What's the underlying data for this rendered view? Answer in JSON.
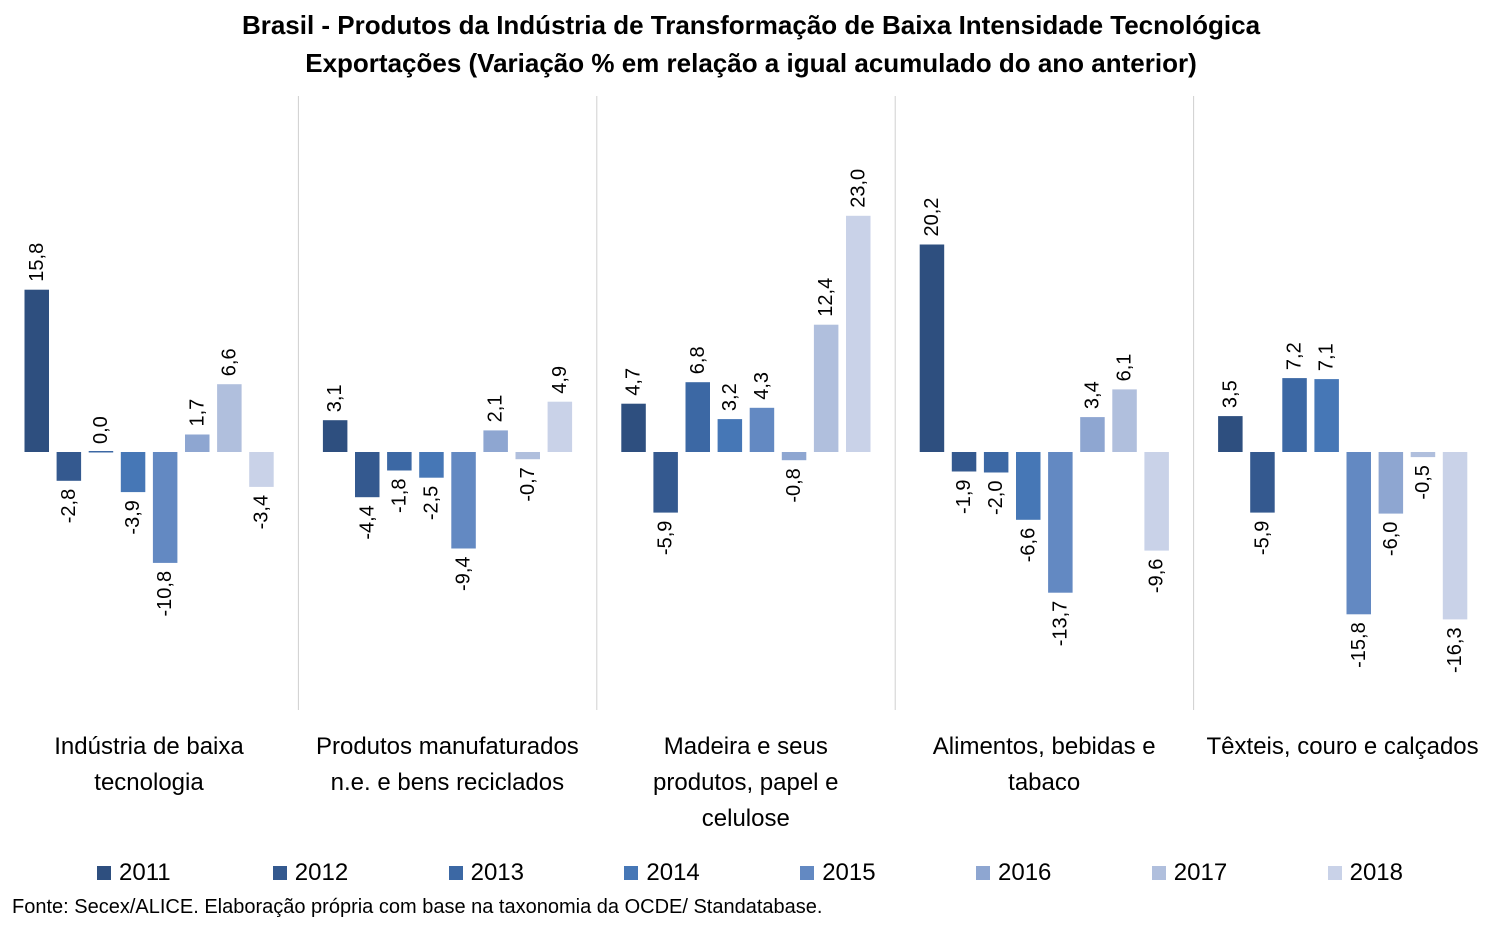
{
  "chart_data": {
    "type": "bar",
    "title": "Brasil - Produtos da Indústria de Transformação de Baixa Intensidade Tecnológica",
    "subtitle": "Exportações (Variação % em relação a igual acumulado do ano anterior)",
    "categories": [
      [
        "Indústria de baixa",
        "tecnologia"
      ],
      [
        "Produtos manufaturados",
        "n.e. e bens reciclados"
      ],
      [
        "Madeira e seus",
        "produtos, papel e",
        "celulose"
      ],
      [
        "Alimentos, bebidas e",
        "tabaco"
      ],
      [
        "Têxteis, couro e calçados"
      ]
    ],
    "series": [
      {
        "name": "2011",
        "color": "#2E4F7F",
        "values": [
          15.8,
          3.1,
          4.7,
          20.2,
          3.5
        ],
        "labels": [
          "15,8",
          "3,1",
          "4,7",
          "20,2",
          "3,5"
        ]
      },
      {
        "name": "2012",
        "color": "#34598F",
        "values": [
          -2.8,
          -4.4,
          -5.9,
          -1.9,
          -5.9
        ],
        "labels": [
          "-2,8",
          "-4,4",
          "-5,9",
          "-1,9",
          "-5,9"
        ]
      },
      {
        "name": "2013",
        "color": "#3C68A4",
        "values": [
          0.0,
          -1.8,
          6.8,
          -2.0,
          7.2
        ],
        "labels": [
          "0,0",
          "-1,8",
          "6,8",
          "-2,0",
          "7,2"
        ]
      },
      {
        "name": "2014",
        "color": "#4677B6",
        "values": [
          -3.9,
          -2.5,
          3.2,
          -6.6,
          7.1
        ],
        "labels": [
          "-3,9",
          "-2,5",
          "3,2",
          "-6,6",
          "7,1"
        ]
      },
      {
        "name": "2015",
        "color": "#6389C2",
        "values": [
          -10.8,
          -9.4,
          4.3,
          -13.7,
          -15.8
        ],
        "labels": [
          "-10,8",
          "-9,4",
          "4,3",
          "-13,7",
          "-15,8"
        ]
      },
      {
        "name": "2016",
        "color": "#8EA6D1",
        "values": [
          1.7,
          2.1,
          -0.8,
          3.4,
          -6.0
        ],
        "labels": [
          "1,7",
          "2,1",
          "-0,8",
          "3,4",
          "-6,0"
        ]
      },
      {
        "name": "2017",
        "color": "#B0BFDD",
        "values": [
          6.6,
          -0.7,
          12.4,
          6.1,
          -0.5
        ],
        "labels": [
          "6,6",
          "-0,7",
          "12,4",
          "6,1",
          "-0,5"
        ]
      },
      {
        "name": "2018",
        "color": "#C9D2E8",
        "values": [
          -3.4,
          4.9,
          23.0,
          -9.6,
          -16.3
        ],
        "labels": [
          "-3,4",
          "4,9",
          "23,0",
          "-9,6",
          "-16,3"
        ]
      }
    ],
    "ylim": [
      -19,
      26
    ],
    "grid": false,
    "legend_position": "bottom",
    "source": "Fonte: Secex/ALICE. Elaboração própria com base na taxonomia da OCDE/ Standatabase."
  }
}
